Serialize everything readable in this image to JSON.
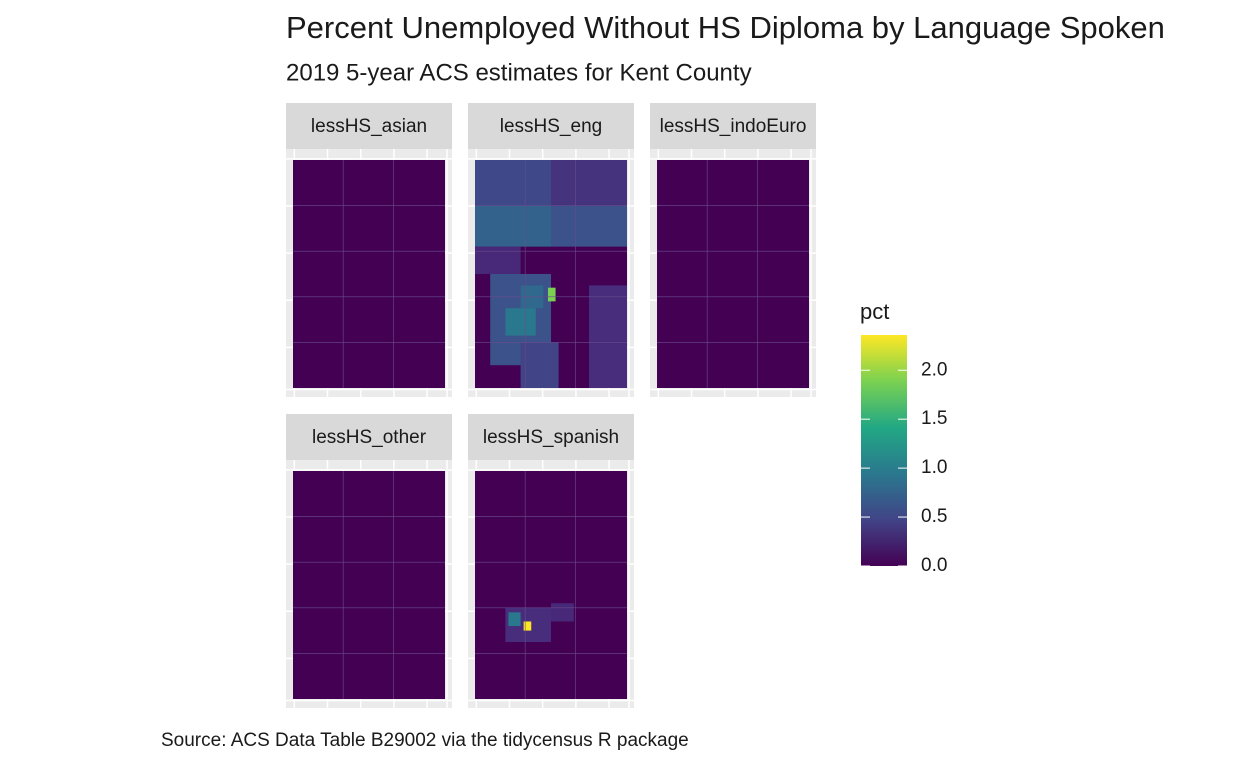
{
  "title": "Percent Unemployed Without HS Diploma by Language Spoken",
  "subtitle": "2019 5-year ACS estimates for Kent County",
  "facets": [
    "lessHS_asian",
    "lessHS_eng",
    "lessHS_indoEuro",
    "lessHS_other",
    "lessHS_spanish"
  ],
  "legend": {
    "title": "pct",
    "lim": [
      0,
      2.36
    ],
    "ticks": [
      {
        "value": 0,
        "label": "0.0"
      },
      0.5,
      {
        "value": 1,
        "label": "1.0"
      },
      1.5,
      {
        "value": 2,
        "label": "2.0"
      }
    ]
  },
  "caption": "Source: ACS Data Table B29002 via the tidycensus R package"
}
